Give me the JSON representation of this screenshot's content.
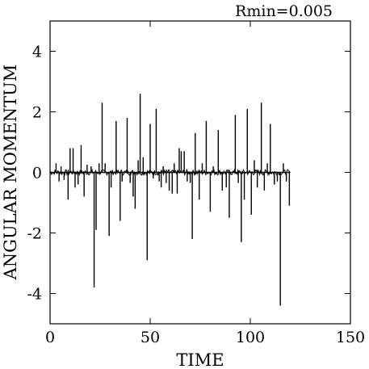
{
  "chart_data": {
    "type": "line",
    "title": "",
    "annotation": "Rmin=0.005",
    "xlabel": "TIME",
    "ylabel": "ANGULAR MOMENTUM",
    "xlim": [
      0,
      150
    ],
    "ylim": [
      -5,
      5
    ],
    "xticks": [
      0,
      50,
      100,
      150
    ],
    "yticks": [
      -4,
      -2,
      0,
      2,
      4
    ],
    "xtick_labels": [
      "0",
      "50",
      "100",
      "150"
    ],
    "ytick_labels": [
      "-4",
      "-2",
      "0",
      "2",
      "4"
    ],
    "grid": false,
    "line_color": "#000000",
    "baseline": 0,
    "spikes": [
      {
        "x": 3,
        "y": 0.3
      },
      {
        "x": 4.5,
        "y": -0.3
      },
      {
        "x": 5.5,
        "y": 0.2
      },
      {
        "x": 7,
        "y": -0.25
      },
      {
        "x": 9,
        "y": -0.9
      },
      {
        "x": 10,
        "y": 0.8
      },
      {
        "x": 11.5,
        "y": 0.8
      },
      {
        "x": 12.5,
        "y": -0.5
      },
      {
        "x": 14,
        "y": -0.4
      },
      {
        "x": 15.5,
        "y": 0.9
      },
      {
        "x": 17,
        "y": -0.8
      },
      {
        "x": 18.5,
        "y": 0.25
      },
      {
        "x": 20.5,
        "y": 0.2
      },
      {
        "x": 22,
        "y": -3.8
      },
      {
        "x": 23,
        "y": -1.9
      },
      {
        "x": 24.5,
        "y": 0.3
      },
      {
        "x": 26,
        "y": 2.3
      },
      {
        "x": 27.5,
        "y": 0.3
      },
      {
        "x": 29.5,
        "y": -2.1
      },
      {
        "x": 30.5,
        "y": -0.5
      },
      {
        "x": 33,
        "y": 1.7
      },
      {
        "x": 35,
        "y": -1.6
      },
      {
        "x": 36,
        "y": -0.3
      },
      {
        "x": 38.5,
        "y": 1.8
      },
      {
        "x": 40,
        "y": -0.35
      },
      {
        "x": 41.5,
        "y": -0.8
      },
      {
        "x": 42.5,
        "y": -1.2
      },
      {
        "x": 44,
        "y": 0.4
      },
      {
        "x": 45,
        "y": 2.6
      },
      {
        "x": 46.5,
        "y": 0.5
      },
      {
        "x": 48.5,
        "y": -2.9
      },
      {
        "x": 50,
        "y": 1.6
      },
      {
        "x": 51.5,
        "y": -0.2
      },
      {
        "x": 53,
        "y": 2.1
      },
      {
        "x": 54.5,
        "y": -0.3
      },
      {
        "x": 55.5,
        "y": -0.5
      },
      {
        "x": 56.5,
        "y": 0.2
      },
      {
        "x": 58,
        "y": -0.35
      },
      {
        "x": 59.5,
        "y": -0.6
      },
      {
        "x": 61,
        "y": -0.7
      },
      {
        "x": 62,
        "y": 0.3
      },
      {
        "x": 63.5,
        "y": -0.7
      },
      {
        "x": 64.5,
        "y": 0.8
      },
      {
        "x": 65.5,
        "y": 0.7
      },
      {
        "x": 67,
        "y": 0.7
      },
      {
        "x": 68.5,
        "y": -0.3
      },
      {
        "x": 70,
        "y": -0.35
      },
      {
        "x": 71,
        "y": -2.2
      },
      {
        "x": 72.5,
        "y": 1.3
      },
      {
        "x": 74.5,
        "y": -0.9
      },
      {
        "x": 76,
        "y": 0.3
      },
      {
        "x": 78,
        "y": 1.7
      },
      {
        "x": 80,
        "y": -1.3
      },
      {
        "x": 81.5,
        "y": 0.2
      },
      {
        "x": 84,
        "y": 1.4
      },
      {
        "x": 86,
        "y": -0.6
      },
      {
        "x": 88,
        "y": -0.5
      },
      {
        "x": 89.5,
        "y": -1.5
      },
      {
        "x": 92.5,
        "y": 1.9
      },
      {
        "x": 94,
        "y": -0.35
      },
      {
        "x": 95.5,
        "y": -2.3
      },
      {
        "x": 97,
        "y": -0.9
      },
      {
        "x": 98.5,
        "y": 2.1
      },
      {
        "x": 100.5,
        "y": -1.4
      },
      {
        "x": 102,
        "y": 0.4
      },
      {
        "x": 103.5,
        "y": -0.5
      },
      {
        "x": 105.5,
        "y": 2.3
      },
      {
        "x": 107,
        "y": -0.6
      },
      {
        "x": 108.5,
        "y": 0.3
      },
      {
        "x": 110,
        "y": 1.6
      },
      {
        "x": 112,
        "y": -0.4
      },
      {
        "x": 113.5,
        "y": -0.3
      },
      {
        "x": 115,
        "y": -4.4
      },
      {
        "x": 116.5,
        "y": 0.3
      },
      {
        "x": 118,
        "y": -0.3
      },
      {
        "x": 119.5,
        "y": -1.1
      }
    ],
    "x_end": 120
  }
}
